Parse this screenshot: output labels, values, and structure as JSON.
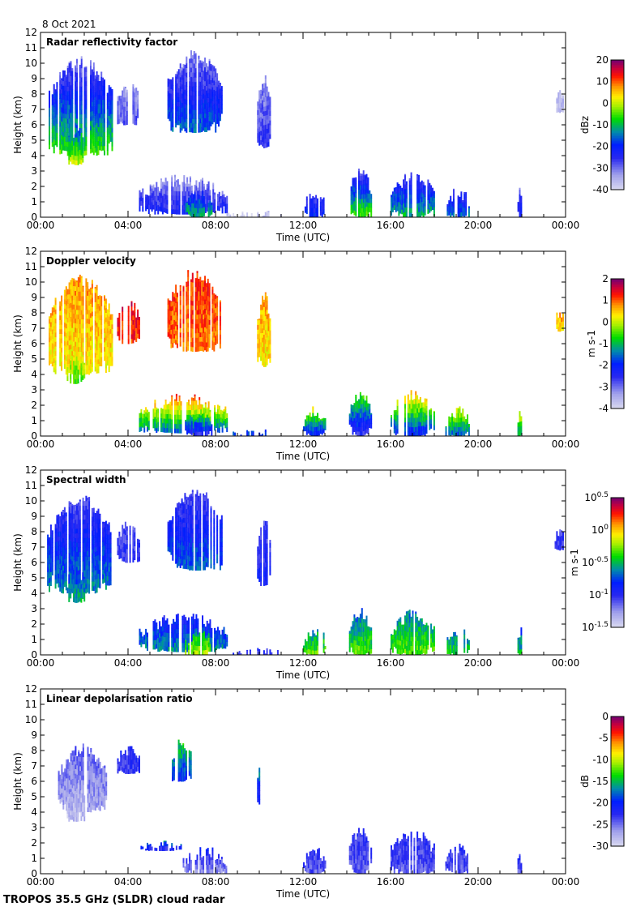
{
  "date": "8 Oct 2021",
  "footer": "TROPOS 35.5 GHz (SLDR) cloud radar",
  "chart_data": [
    {
      "type": "heatmap",
      "title": "Radar reflectivity factor",
      "xlabel": "Time (UTC)",
      "ylabel": "Height (km)",
      "xlim": [
        0,
        24
      ],
      "ylim": [
        0,
        12
      ],
      "xticks": [
        "00:00",
        "04:00",
        "08:00",
        "12:00",
        "16:00",
        "20:00",
        "00:00"
      ],
      "yticks": [
        "0",
        "1",
        "2",
        "3",
        "4",
        "5",
        "6",
        "7",
        "8",
        "9",
        "10",
        "11",
        "12"
      ],
      "colorbar": {
        "label": "dBz",
        "range": [
          -40,
          20
        ],
        "ticks": [
          "20",
          "10",
          "0",
          "-10",
          "-20",
          "-30",
          "-40"
        ]
      },
      "regions": [
        [
          0.3,
          3.3,
          4.0,
          10.5,
          -5,
          -32
        ],
        [
          1.2,
          2.0,
          3.4,
          6,
          0,
          -20
        ],
        [
          3.5,
          4.5,
          6,
          9,
          -28,
          -34
        ],
        [
          5.8,
          8.3,
          5.5,
          11,
          -15,
          -33
        ],
        [
          9.9,
          10.5,
          4.5,
          9.5,
          -25,
          -33
        ],
        [
          4.5,
          8.5,
          0.2,
          2.8,
          -22,
          -35
        ],
        [
          6.6,
          7.8,
          0,
          1.8,
          -10,
          -25
        ],
        [
          8.5,
          11,
          0,
          0.5,
          -38,
          -38
        ],
        [
          12,
          13,
          0,
          2,
          -20,
          -30
        ],
        [
          14.1,
          15.1,
          0,
          3.2,
          -5,
          -30
        ],
        [
          16,
          18,
          0,
          3,
          -10,
          -30
        ],
        [
          18.5,
          19.6,
          0,
          2,
          -15,
          -30
        ],
        [
          21.8,
          22,
          0,
          2,
          -20,
          -30
        ],
        [
          23.5,
          23.9,
          6.8,
          8.5,
          -35,
          -38
        ]
      ]
    },
    {
      "type": "heatmap",
      "title": "Doppler velocity",
      "xlabel": "Time (UTC)",
      "ylabel": "Height (km)",
      "xlim": [
        0,
        24
      ],
      "ylim": [
        0,
        12
      ],
      "xticks": [
        "00:00",
        "04:00",
        "08:00",
        "12:00",
        "16:00",
        "20:00",
        "00:00"
      ],
      "yticks": [
        "0",
        "1",
        "2",
        "3",
        "4",
        "5",
        "6",
        "7",
        "8",
        "9",
        "10",
        "11",
        "12"
      ],
      "colorbar": {
        "label": "m s-1",
        "range": [
          -4,
          2
        ],
        "ticks": [
          "2",
          "1",
          "0",
          "-1",
          "-2",
          "-3",
          "-4"
        ]
      },
      "regions": [
        [
          0.3,
          3.3,
          4.0,
          10.5,
          0.3,
          0.8
        ],
        [
          1.2,
          2.0,
          3.4,
          6,
          -0.5,
          0.5
        ],
        [
          3.5,
          4.5,
          6,
          9,
          1.2,
          1.5
        ],
        [
          5.8,
          8.3,
          5.5,
          11,
          0.9,
          1.3
        ],
        [
          9.9,
          10.5,
          4.5,
          9.5,
          0.3,
          0.8
        ],
        [
          4.5,
          8.5,
          0.2,
          2.8,
          -1.5,
          1.5
        ],
        [
          6.6,
          7.8,
          0,
          1.8,
          -2.5,
          0
        ],
        [
          8.5,
          11,
          0,
          0.5,
          -1.8,
          -1.8
        ],
        [
          12,
          13,
          0,
          2,
          -2,
          0.5
        ],
        [
          14.1,
          15.1,
          0,
          3.2,
          -2.5,
          0
        ],
        [
          16,
          18,
          0,
          3,
          -2,
          1
        ],
        [
          18.5,
          19.6,
          0,
          2,
          -1.5,
          0.5
        ],
        [
          21.8,
          22,
          0,
          2,
          -1,
          0.5
        ],
        [
          23.5,
          23.9,
          6.8,
          8.5,
          0.5,
          0.8
        ]
      ]
    },
    {
      "type": "heatmap",
      "title": "Spectral width",
      "xlabel": "Time (UTC)",
      "ylabel": "Height (km)",
      "xlim": [
        0,
        24
      ],
      "ylim": [
        0,
        12
      ],
      "xticks": [
        "00:00",
        "04:00",
        "08:00",
        "12:00",
        "16:00",
        "20:00",
        "00:00"
      ],
      "yticks": [
        "0",
        "1",
        "2",
        "3",
        "4",
        "5",
        "6",
        "7",
        "8",
        "9",
        "10",
        "11",
        "12"
      ],
      "colorbar": {
        "label": "m s-1",
        "range": [
          -1.5,
          0.5
        ],
        "log": true,
        "ticks": [
          "10^0.5",
          "10^0",
          "10^-0.5",
          "10^-1",
          "10^-1.5"
        ]
      },
      "regions": [
        [
          0.3,
          3.3,
          4.0,
          10.5,
          -0.6,
          -1.1
        ],
        [
          1.2,
          2.0,
          3.4,
          6,
          -0.5,
          -0.9
        ],
        [
          3.5,
          4.5,
          6,
          9,
          -1.0,
          -1.1
        ],
        [
          5.8,
          8.3,
          5.5,
          11,
          -0.7,
          -1.1
        ],
        [
          9.9,
          10.5,
          4.5,
          9.5,
          -0.9,
          -1.1
        ],
        [
          4.5,
          8.5,
          0.2,
          2.8,
          -0.6,
          -1.0
        ],
        [
          6.6,
          7.8,
          0,
          1.8,
          -0.2,
          -0.6
        ],
        [
          8.5,
          11,
          0,
          0.5,
          -1.0,
          -1.0
        ],
        [
          12,
          13,
          0,
          2,
          -0.3,
          -0.7
        ],
        [
          14.1,
          15.1,
          0,
          3.2,
          -0.3,
          -0.8
        ],
        [
          16,
          18,
          0,
          3,
          -0.3,
          -0.7
        ],
        [
          18.5,
          19.6,
          0,
          2,
          -0.4,
          -0.8
        ],
        [
          21.8,
          22,
          0,
          2,
          -0.5,
          -0.8
        ],
        [
          23.5,
          23.9,
          6.8,
          8.5,
          -1.0,
          -1.1
        ]
      ]
    },
    {
      "type": "heatmap",
      "title": "Linear depolarisation ratio",
      "xlabel": "Time (UTC)",
      "ylabel": "Height (km)",
      "xlim": [
        0,
        24
      ],
      "ylim": [
        0,
        12
      ],
      "xticks": [
        "00:00",
        "04:00",
        "08:00",
        "12:00",
        "16:00",
        "20:00",
        "00:00"
      ],
      "yticks": [
        "0",
        "1",
        "2",
        "3",
        "4",
        "5",
        "6",
        "7",
        "8",
        "9",
        "10",
        "11",
        "12"
      ],
      "colorbar": {
        "label": "dB",
        "range": [
          -30,
          0
        ],
        "ticks": [
          "0",
          "-5",
          "-10",
          "-15",
          "-20",
          "-25",
          "-30"
        ]
      },
      "regions": [
        [
          0.8,
          3.0,
          4.0,
          8.5,
          -27,
          -24
        ],
        [
          1.2,
          2.0,
          3.4,
          6,
          -28,
          -27
        ],
        [
          3.5,
          4.5,
          6.5,
          8.5,
          -23,
          -22
        ],
        [
          6.0,
          6.9,
          6,
          9,
          -20,
          -12
        ],
        [
          9.9,
          10.1,
          4.5,
          7.5,
          -22,
          -15
        ],
        [
          4.5,
          6.5,
          1.5,
          2.2,
          -22,
          -15
        ],
        [
          6.5,
          8.5,
          0,
          1.8,
          -26,
          -20
        ],
        [
          12,
          13,
          0,
          1.8,
          -24,
          -22
        ],
        [
          14.1,
          15.1,
          0,
          3.2,
          -24,
          -22
        ],
        [
          16,
          18,
          0,
          3,
          -24,
          -22
        ],
        [
          18.5,
          19.6,
          0,
          2,
          -24,
          -22
        ],
        [
          21.8,
          22,
          0,
          1.6,
          -24,
          -22
        ]
      ]
    }
  ]
}
